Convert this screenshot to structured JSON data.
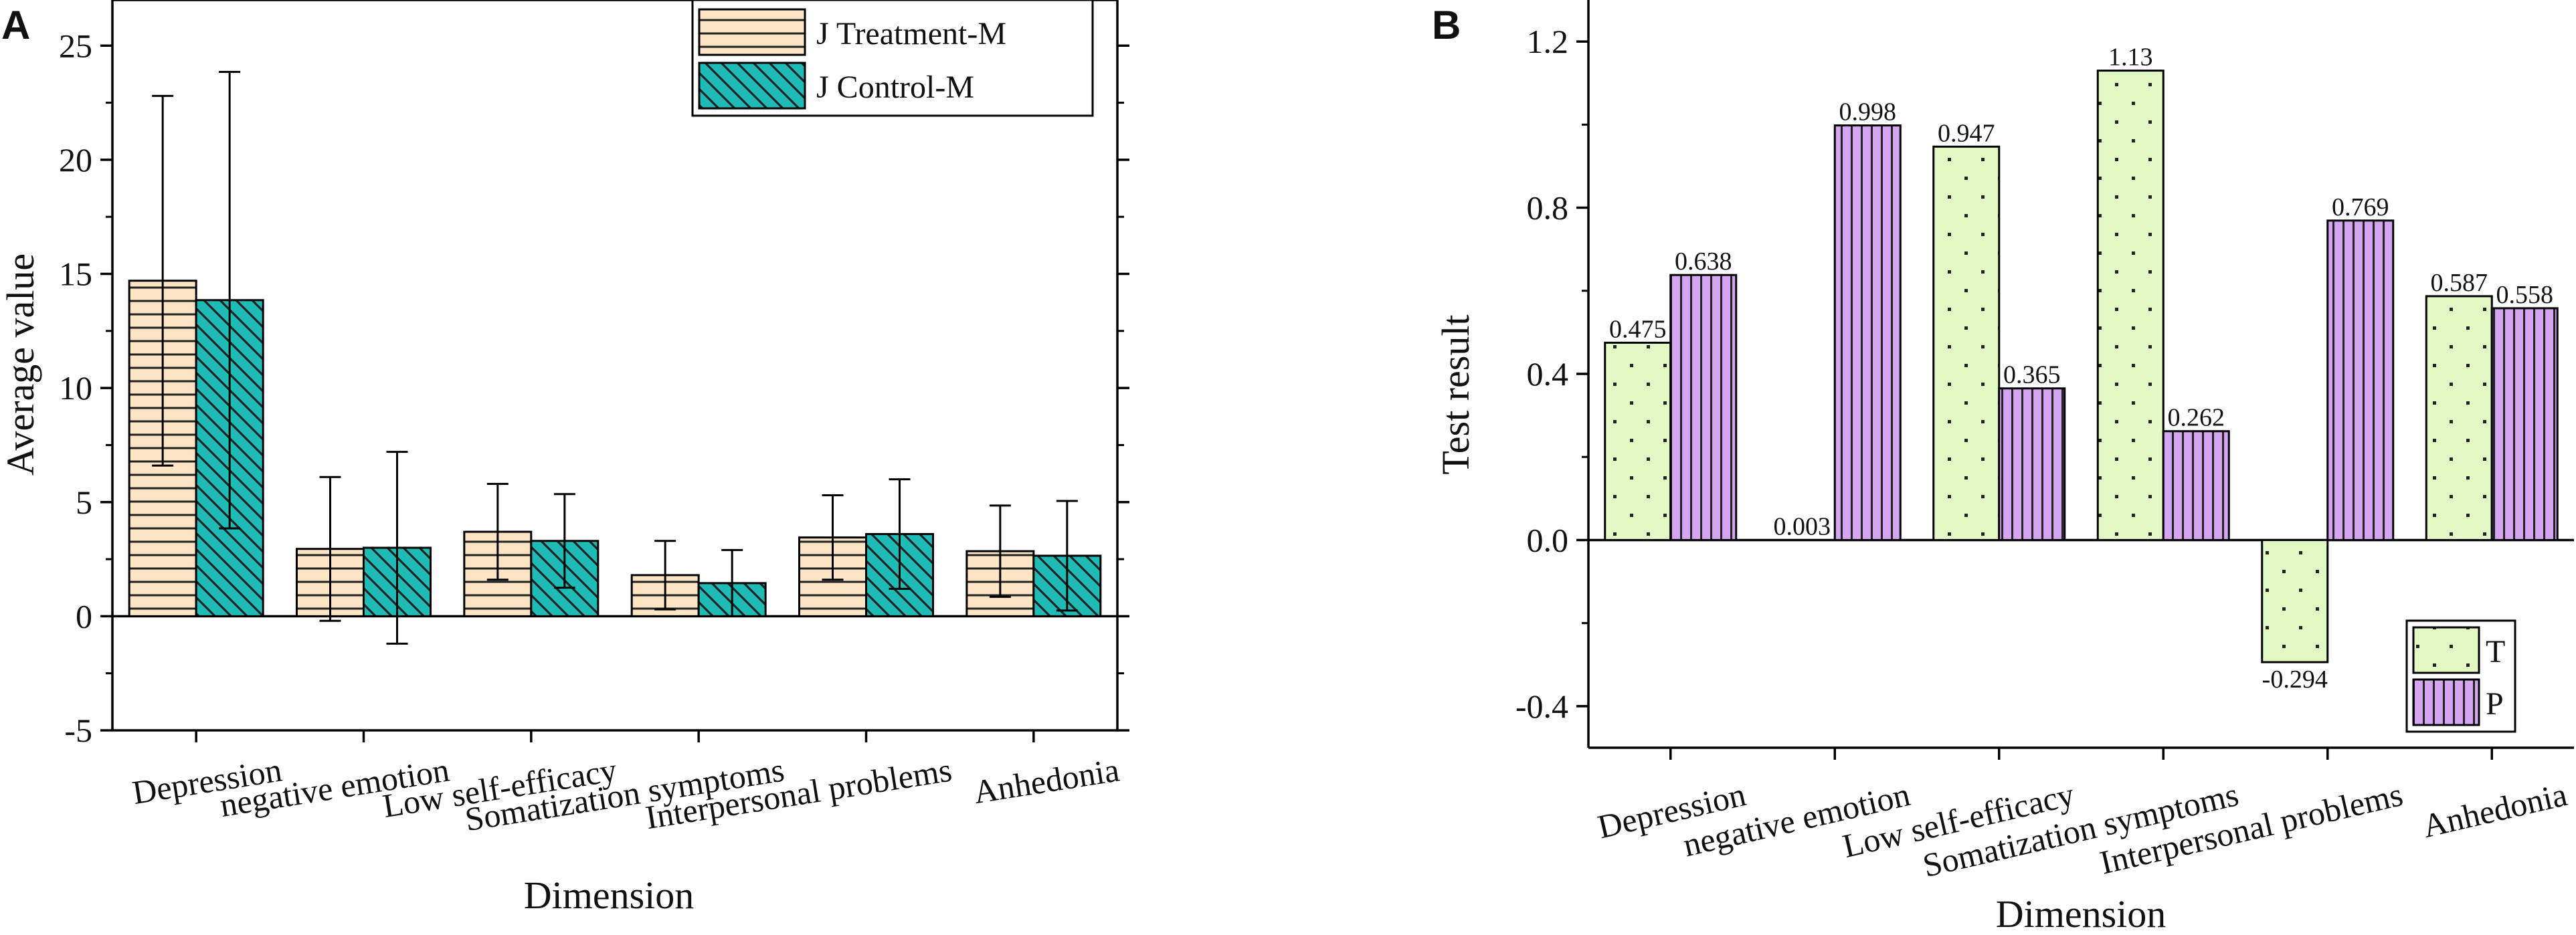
{
  "chart_data": [
    {
      "type": "bar",
      "panel": "A",
      "title": "",
      "xlabel": "Dimension",
      "ylabel": "Average value",
      "ylim": [
        -5,
        27
      ],
      "yticks": [
        "-5",
        "0",
        "5",
        "10",
        "15",
        "20",
        "25"
      ],
      "categories": [
        "Depression",
        "negative emotion",
        "Low self-efficacy",
        "Somatization symptoms",
        "Interpersonal problems",
        "Anhedonia"
      ],
      "series": [
        {
          "name": "J  Treatment-M",
          "values": [
            14.7,
            2.95,
            3.7,
            1.8,
            3.45,
            2.85
          ],
          "errors": [
            8.1,
            3.15,
            2.1,
            1.5,
            1.85,
            2.0
          ],
          "fill": "#fbe5c4",
          "pattern": "horizontal-lines"
        },
        {
          "name": "J  Control-M",
          "values": [
            13.85,
            3.0,
            3.3,
            1.45,
            3.6,
            2.65
          ],
          "errors": [
            10.0,
            4.2,
            2.05,
            1.45,
            2.4,
            2.4
          ],
          "fill": "#1fbcb6",
          "pattern": "diagonal-lines"
        }
      ],
      "legend": "top-right"
    },
    {
      "type": "bar",
      "panel": "B",
      "title": "",
      "xlabel": "Dimension",
      "ylabel": "Test result",
      "ylim": [
        -0.5,
        1.3
      ],
      "yticks": [
        "-0.4",
        "0.0",
        "0.4",
        "0.8",
        "1.2"
      ],
      "categories": [
        "Depression",
        "negative emotion",
        "Low self-efficacy",
        "Somatization symptoms",
        "Interpersonal problems",
        "Anhedonia"
      ],
      "series": [
        {
          "name": "T",
          "values": [
            0.475,
            0.003,
            0.947,
            1.13,
            -0.294,
            0.587
          ],
          "labels": [
            "0.475",
            "0.003",
            "0.947",
            "1.13",
            "-0.294",
            "0.587"
          ],
          "fill": "#e2f9c5",
          "pattern": "dots"
        },
        {
          "name": "P",
          "values": [
            0.638,
            0.998,
            0.365,
            0.262,
            0.769,
            0.558
          ],
          "labels": [
            "0.638",
            "0.998",
            "0.365",
            "0.262",
            "0.769",
            "0.558"
          ],
          "fill": "#d4a6f2",
          "pattern": "vertical-lines"
        }
      ],
      "legend": "bottom-right"
    }
  ]
}
